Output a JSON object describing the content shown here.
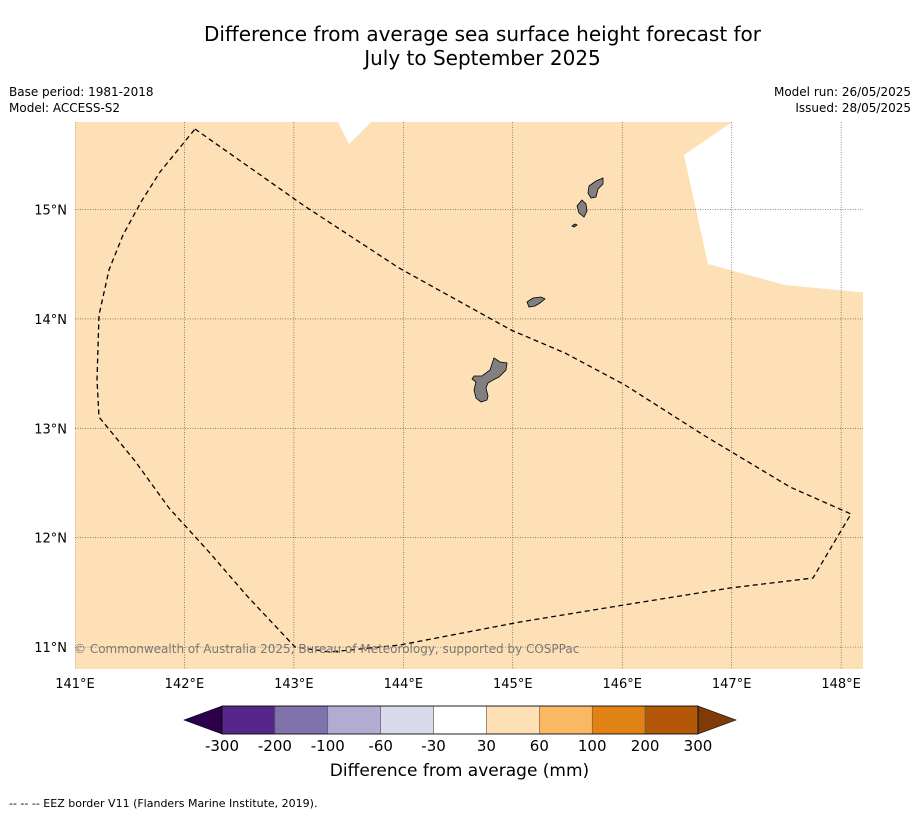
{
  "title": {
    "line1": "Difference from average sea surface height forecast for",
    "line2": "July to September 2025"
  },
  "meta_left": {
    "base_period": "Base period: 1981-2018",
    "model": "Model: ACCESS-S2"
  },
  "meta_right": {
    "model_run": "Model run: 26/05/2025",
    "issued": "Issued: 28/05/2025"
  },
  "map": {
    "lon_range": [
      141.0,
      148.2
    ],
    "lat_range": [
      10.8,
      15.8
    ],
    "lon_ticks": [
      141,
      142,
      143,
      144,
      145,
      146,
      147,
      148
    ],
    "lat_ticks": [
      11,
      12,
      13,
      14,
      15
    ],
    "lon_tick_labels": [
      "141°E",
      "142°E",
      "143°E",
      "144°E",
      "145°E",
      "146°E",
      "147°E",
      "148°E"
    ],
    "lat_tick_labels": [
      "11°N",
      "12°N",
      "13°N",
      "14°N",
      "15°N"
    ],
    "ocean_category": "30 to 60",
    "ocean_color": "#fde0b6",
    "land_color": "#808080",
    "copyright": "© Commonwealth of Australia 2025, Bureau of Meteorology, supported by COSPPac"
  },
  "colorbar": {
    "tick_labels": [
      "-300",
      "-200",
      "-100",
      "-60",
      "-30",
      "30",
      "60",
      "100",
      "200",
      "300"
    ],
    "colors": [
      "#542788",
      "#8073ac",
      "#b2abd2",
      "#d8daeb",
      "#ffffff",
      "#fde0b6",
      "#fbb862",
      "#e08214",
      "#b35806"
    ],
    "under_color": "#2d004b",
    "over_color": "#7f3b08",
    "label": "Difference from average (mm)"
  },
  "footnote": "--  --  -- EEZ border V11 (Flanders Marine Institute, 2019)."
}
